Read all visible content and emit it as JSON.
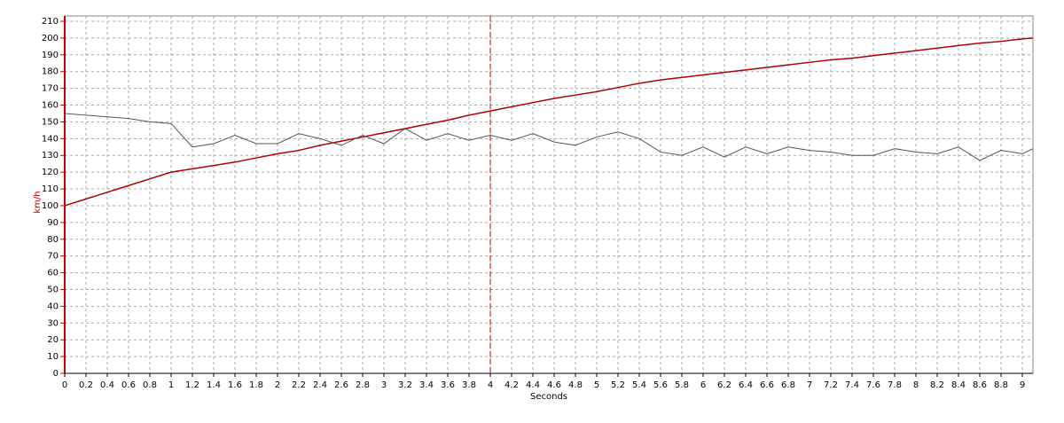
{
  "chart_data": {
    "type": "line",
    "x_label": "Seconds",
    "y_label": "km/h",
    "x": [
      0,
      0.2,
      0.4,
      0.6,
      0.8,
      1,
      1.2,
      1.4,
      1.6,
      1.8,
      2,
      2.2,
      2.4,
      2.6,
      2.8,
      3,
      3.2,
      3.4,
      3.6,
      3.8,
      4,
      4.2,
      4.4,
      4.6,
      4.8,
      5,
      5.2,
      5.4,
      5.6,
      5.8,
      6,
      6.2,
      6.4,
      6.6,
      6.8,
      7,
      7.2,
      7.4,
      7.6,
      7.8,
      8,
      8.2,
      8.4,
      8.6,
      8.8,
      9,
      9.1
    ],
    "series": [
      {
        "color": "#b00000",
        "values": [
          100,
          104,
          108,
          112,
          116,
          120,
          122,
          124,
          126,
          128.5,
          131,
          133,
          136,
          138.5,
          141,
          143.5,
          146,
          148.5,
          151,
          154,
          156.5,
          159,
          161.5,
          164,
          166,
          168,
          170.5,
          173,
          175,
          176.5,
          178,
          179.5,
          181,
          182.5,
          184,
          185.5,
          187,
          188,
          189.5,
          191,
          192.5,
          194,
          195.5,
          197,
          198,
          199.5,
          200
        ]
      },
      {
        "color": "#555555",
        "values": [
          155,
          154,
          153,
          152,
          150,
          149,
          135,
          137,
          142,
          137,
          137,
          143,
          140,
          136,
          142,
          137,
          146,
          139,
          143,
          139,
          142,
          139,
          143,
          138,
          136,
          141,
          144,
          140,
          132,
          130,
          135,
          129,
          135,
          131,
          135,
          133,
          132,
          130,
          130,
          134,
          132,
          131,
          135,
          127,
          133,
          131,
          134
        ]
      }
    ],
    "xlim": [
      0,
      9.1
    ],
    "ylim": [
      0,
      210
    ],
    "xticks": [
      0,
      0.2,
      0.4,
      0.6,
      0.8,
      1,
      1.2,
      1.4,
      1.6,
      1.8,
      2,
      2.2,
      2.4,
      2.6,
      2.8,
      3,
      3.2,
      3.4,
      3.6,
      3.8,
      4,
      4.2,
      4.4,
      4.6,
      4.8,
      5,
      5.2,
      5.4,
      5.6,
      5.8,
      6,
      6.2,
      6.4,
      6.6,
      6.8,
      7,
      7.2,
      7.4,
      7.6,
      7.8,
      8,
      8.2,
      8.4,
      8.6,
      8.8,
      9
    ],
    "yticks": [
      0,
      10,
      20,
      30,
      40,
      50,
      60,
      70,
      80,
      90,
      100,
      110,
      120,
      130,
      140,
      150,
      160,
      170,
      180,
      190,
      200,
      210
    ],
    "grid": true,
    "cursor_x": 4,
    "axis_color": "#c00000"
  }
}
